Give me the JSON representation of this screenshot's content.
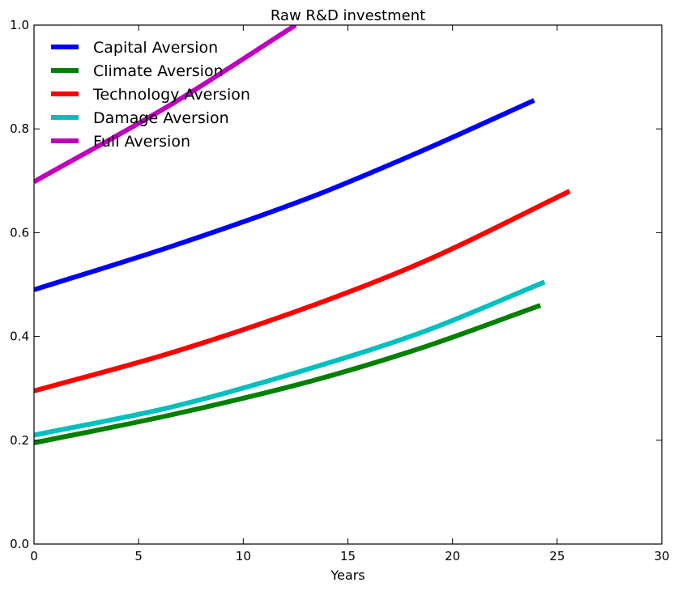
{
  "chart_data": {
    "type": "line",
    "title": "Raw R&D investment",
    "xlabel": "Years",
    "ylabel": "",
    "xlim": [
      0,
      30
    ],
    "ylim": [
      0.0,
      1.0
    ],
    "xticks": [
      "0",
      "5",
      "10",
      "15",
      "20",
      "25",
      "30"
    ],
    "yticks": [
      "0.0",
      "0.2",
      "0.4",
      "0.6",
      "0.8",
      "1.0"
    ],
    "grid": false,
    "legend_position": "top-left",
    "series": [
      {
        "name": "Capital Aversion",
        "color": "#0000ff",
        "x": [
          0,
          6.67,
          13.33,
          18.67,
          23.9
        ],
        "y": [
          0.49,
          0.575,
          0.67,
          0.76,
          0.855
        ]
      },
      {
        "name": "Climate Aversion",
        "color": "#008000",
        "x": [
          0,
          6.67,
          13.33,
          18.67,
          24.2
        ],
        "y": [
          0.195,
          0.25,
          0.315,
          0.38,
          0.46
        ]
      },
      {
        "name": "Technology Aversion",
        "color": "#ff0000",
        "x": [
          0,
          6.67,
          13.33,
          18.67,
          25.6
        ],
        "y": [
          0.295,
          0.37,
          0.46,
          0.545,
          0.68
        ]
      },
      {
        "name": "Damage Aversion",
        "color": "#00bfbf",
        "x": [
          0,
          6.67,
          13.33,
          18.67,
          24.4
        ],
        "y": [
          0.21,
          0.265,
          0.34,
          0.41,
          0.505
        ]
      },
      {
        "name": "Full Aversion",
        "color": "#bf00bf",
        "x": [
          0,
          6.67,
          12.5
        ],
        "y": [
          0.698,
          0.85,
          1.0
        ]
      }
    ]
  }
}
